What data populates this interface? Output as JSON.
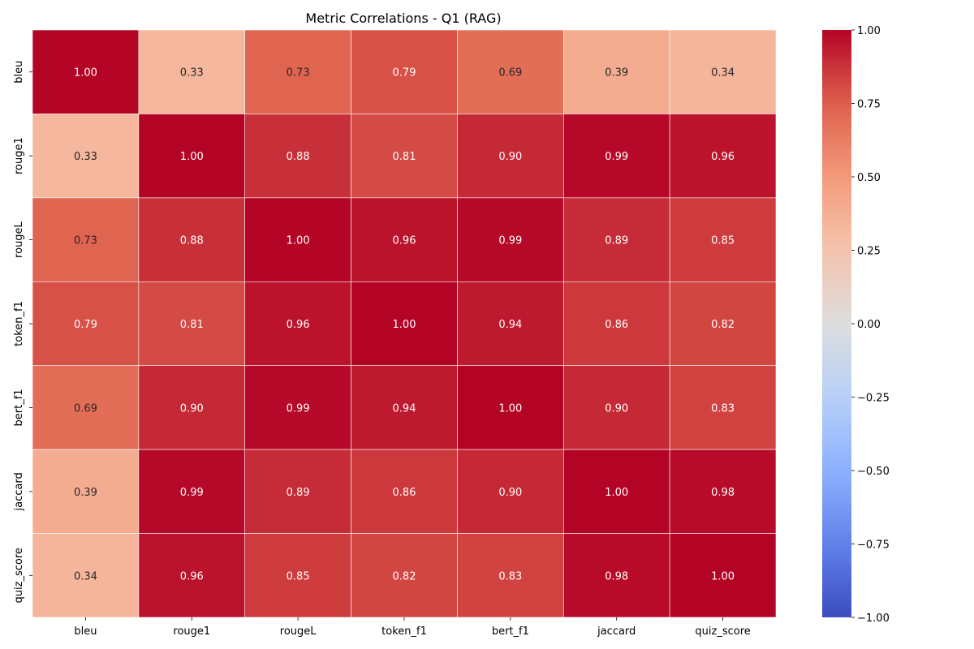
{
  "chart_data": {
    "type": "heatmap",
    "title": "Metric Correlations - Q1 (RAG)",
    "x_labels": [
      "bleu",
      "rouge1",
      "rougeL",
      "token_f1",
      "bert_f1",
      "jaccard",
      "quiz_score"
    ],
    "y_labels": [
      "bleu",
      "rouge1",
      "rougeL",
      "token_f1",
      "bert_f1",
      "jaccard",
      "quiz_score"
    ],
    "values": [
      [
        1.0,
        0.33,
        0.73,
        0.79,
        0.69,
        0.39,
        0.34
      ],
      [
        0.33,
        1.0,
        0.88,
        0.81,
        0.9,
        0.99,
        0.96
      ],
      [
        0.73,
        0.88,
        1.0,
        0.96,
        0.99,
        0.89,
        0.85
      ],
      [
        0.79,
        0.81,
        0.96,
        1.0,
        0.94,
        0.86,
        0.82
      ],
      [
        0.69,
        0.9,
        0.99,
        0.94,
        1.0,
        0.9,
        0.83
      ],
      [
        0.39,
        0.99,
        0.89,
        0.86,
        0.9,
        1.0,
        0.98
      ],
      [
        0.34,
        0.96,
        0.85,
        0.82,
        0.83,
        0.98,
        1.0
      ]
    ],
    "colormap": "coolwarm",
    "vmin": -1.0,
    "vmax": 1.0,
    "colorbar_ticks": [
      "1.00",
      "0.75",
      "0.50",
      "0.25",
      "0.00",
      "−0.25",
      "−0.50",
      "−0.75",
      "−1.00"
    ],
    "colorbar_tick_values": [
      1.0,
      0.75,
      0.5,
      0.25,
      0.0,
      -0.25,
      -0.5,
      -0.75,
      -1.0
    ],
    "colors": {
      "low": "#3b4cc0",
      "mid": "#dddddd",
      "high": "#b40426",
      "cell_border": "#ffffff"
    }
  }
}
